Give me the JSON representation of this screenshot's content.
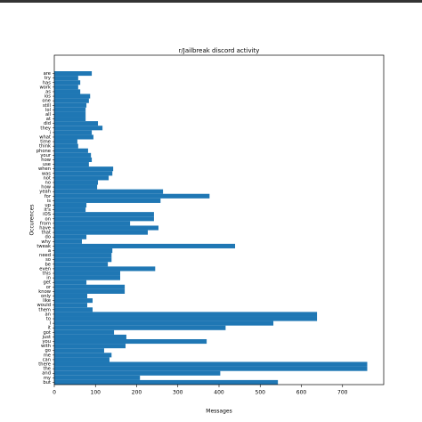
{
  "chart_data": {
    "type": "barh",
    "title": "r/Jailbreak discord activity",
    "xlabel": "Messages",
    "ylabel": "Occurences",
    "categories": [
      "are",
      "try",
      "has",
      "work",
      "as",
      "ios",
      "one",
      "still",
      "lol",
      "all",
      "at",
      "did",
      "they",
      "i",
      "what",
      "time",
      "think",
      "phone",
      "your",
      "how",
      "use",
      "when",
      "was",
      "not",
      "no",
      "how",
      "yeah",
      "for",
      "is",
      "up",
      "it's",
      "iOS",
      "on",
      "from",
      "have",
      "that",
      "do",
      "why",
      "tweak",
      "a",
      "need",
      "so",
      "be",
      "even",
      "this",
      "in",
      "get",
      "or",
      "know",
      "only",
      "like",
      "would",
      "them",
      "an",
      "to",
      "I",
      "it",
      "got",
      "just",
      "you",
      "with",
      "go",
      "me",
      "can",
      "there",
      "the",
      "and",
      "my",
      "but"
    ],
    "values": [
      91,
      58,
      63,
      58,
      63,
      87,
      84,
      78,
      76,
      76,
      76,
      106,
      117,
      91,
      95,
      56,
      58,
      82,
      89,
      91,
      84,
      143,
      141,
      132,
      106,
      104,
      264,
      377,
      258,
      78,
      76,
      242,
      242,
      184,
      253,
      227,
      78,
      67,
      439,
      141,
      139,
      139,
      130,
      245,
      160,
      160,
      78,
      171,
      171,
      80,
      93,
      80,
      93,
      638,
      638,
      532,
      416,
      145,
      175,
      370,
      173,
      121,
      139,
      134,
      760,
      760,
      403,
      208,
      543
    ],
    "color": "#1f77b4",
    "xlim": [
      0,
      800
    ],
    "xticks": [
      0,
      100,
      200,
      300,
      400,
      500,
      600,
      700
    ]
  }
}
